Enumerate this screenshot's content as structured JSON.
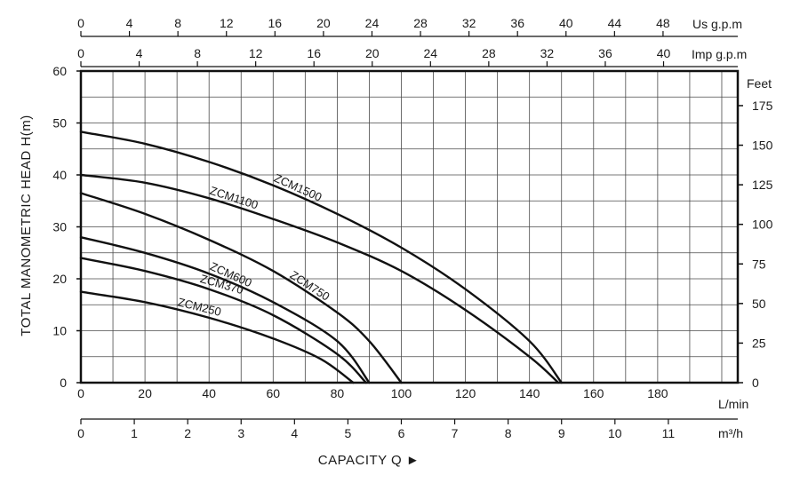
{
  "chart_data": {
    "type": "line",
    "xlabel": "CAPACITY Q ►",
    "ylabel": "TOTAL MANOMETRIC HEAD H(m)",
    "xlim": [
      0,
      205
    ],
    "ylim": [
      0,
      60
    ],
    "grid": true,
    "x_ticks": [
      0,
      20,
      40,
      60,
      80,
      100,
      120,
      140,
      160,
      180
    ],
    "x_unit": "L/min",
    "y_ticks": [
      0,
      10,
      20,
      30,
      40,
      50,
      60
    ],
    "y_right_unit": "Feet",
    "y_right_ticks": [
      0,
      25,
      50,
      75,
      100,
      125,
      150,
      175
    ],
    "x_m3h_unit": "m³/h",
    "x_m3h_ticks": [
      0,
      1,
      2,
      3,
      4,
      5,
      6,
      7,
      8,
      9,
      10,
      11
    ],
    "x_usgpm_unit": "Us g.p.m",
    "x_usgpm_ticks": [
      0,
      4,
      8,
      12,
      16,
      20,
      24,
      28,
      32,
      36,
      40,
      44,
      48
    ],
    "x_impgpm_unit": "Imp g.p.m",
    "x_impgpm_ticks": [
      0,
      4,
      8,
      12,
      16,
      20,
      24,
      28,
      32,
      36,
      40
    ],
    "series": [
      {
        "name": "ZCM1500",
        "x": [
          0,
          20,
          40,
          60,
          80,
          100,
          120,
          140,
          150
        ],
        "y": [
          48.3,
          46,
          42.5,
          38,
          32.5,
          26,
          18,
          8,
          0
        ]
      },
      {
        "name": "ZCM1100",
        "x": [
          0,
          20,
          40,
          60,
          80,
          100,
          120,
          140,
          149
        ],
        "y": [
          40,
          38.5,
          35.5,
          31.5,
          27,
          21.5,
          14,
          5,
          0
        ]
      },
      {
        "name": "ZCM750",
        "x": [
          0,
          20,
          40,
          60,
          80,
          90,
          100
        ],
        "y": [
          36.5,
          32.5,
          27.5,
          21.5,
          13.5,
          8,
          0
        ]
      },
      {
        "name": "ZCM600",
        "x": [
          0,
          20,
          40,
          60,
          80,
          90
        ],
        "y": [
          28,
          25,
          21,
          15.5,
          8,
          0
        ]
      },
      {
        "name": "ZCM370",
        "x": [
          0,
          20,
          40,
          60,
          80,
          89
        ],
        "y": [
          24,
          21.5,
          18,
          13,
          5.5,
          0
        ]
      },
      {
        "name": "ZCM250",
        "x": [
          0,
          20,
          40,
          60,
          75,
          85
        ],
        "y": [
          17.5,
          15.5,
          12.5,
          8.5,
          4.5,
          0
        ]
      }
    ]
  }
}
